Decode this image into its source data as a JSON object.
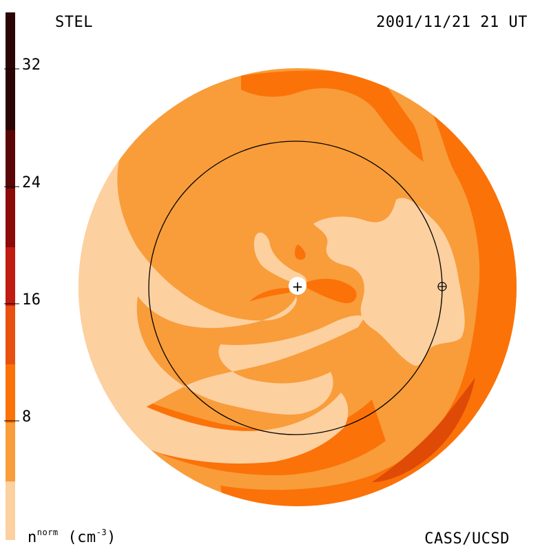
{
  "header": {
    "model_label": "STEL",
    "timestamp": "2001/11/21 21 UT"
  },
  "footer": {
    "credit": "CASS/UCSD"
  },
  "colorbar": {
    "ticks": [
      "32",
      "24",
      "16",
      "8"
    ],
    "units_base": "n",
    "units_sup": "norm",
    "units_paren_open": "(cm",
    "units_exp": "-3",
    "units_paren_close": ")",
    "colors": [
      "#fdd0a0",
      "#f89d3a",
      "#fb7209",
      "#e85010",
      "#c01c10",
      "#8c0a08",
      "#5a0606",
      "#2b0404"
    ]
  },
  "palette": {
    "level1": "#fdd0a0",
    "level2": "#f89d3a",
    "level3": "#fb7209",
    "level4": "#df4a06",
    "line": "#000000"
  },
  "markers": {
    "sun_symbol": "+",
    "earth_symbol": "⊕"
  }
}
